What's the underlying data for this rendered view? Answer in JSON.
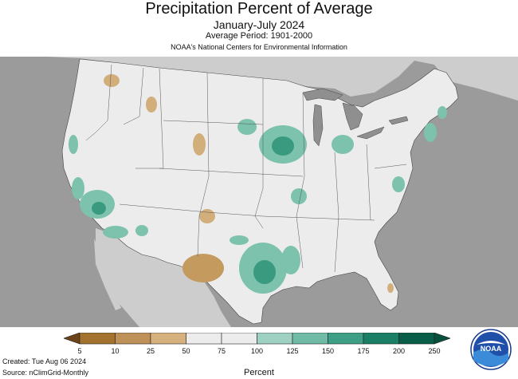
{
  "title": "Precipitation Percent of Average",
  "subtitle": "January-July 2024",
  "average_period": "Average Period: 1901-2000",
  "source_org": "NOAA's National Centers for Environmental Information",
  "created": "Created: Tue Aug 06 2024",
  "source": "Source: nClimGrid-Monthly",
  "legend": {
    "unit_label": "Percent",
    "ticks": [
      "5",
      "10",
      "25",
      "50",
      "75",
      "100",
      "125",
      "150",
      "175",
      "200",
      "250"
    ],
    "colors": [
      "#8a5a24",
      "#a3722f",
      "#bf9158",
      "#d7b17d",
      "#ececec",
      "#ececec",
      "#9fd1c3",
      "#6fbba6",
      "#3e9f86",
      "#1a7f65",
      "#0a5e48"
    ]
  },
  "logo_text": "NOAA",
  "colors": {
    "ocean": "#9b9b9b",
    "land_outside": "#cdcdcd",
    "conus": "#ececec",
    "lakes": "#8f8f8f",
    "wet": "#7cc2ad",
    "wetter": "#3a9a7f",
    "dry": "#d2ae7b",
    "drier": "#c59a5e"
  }
}
